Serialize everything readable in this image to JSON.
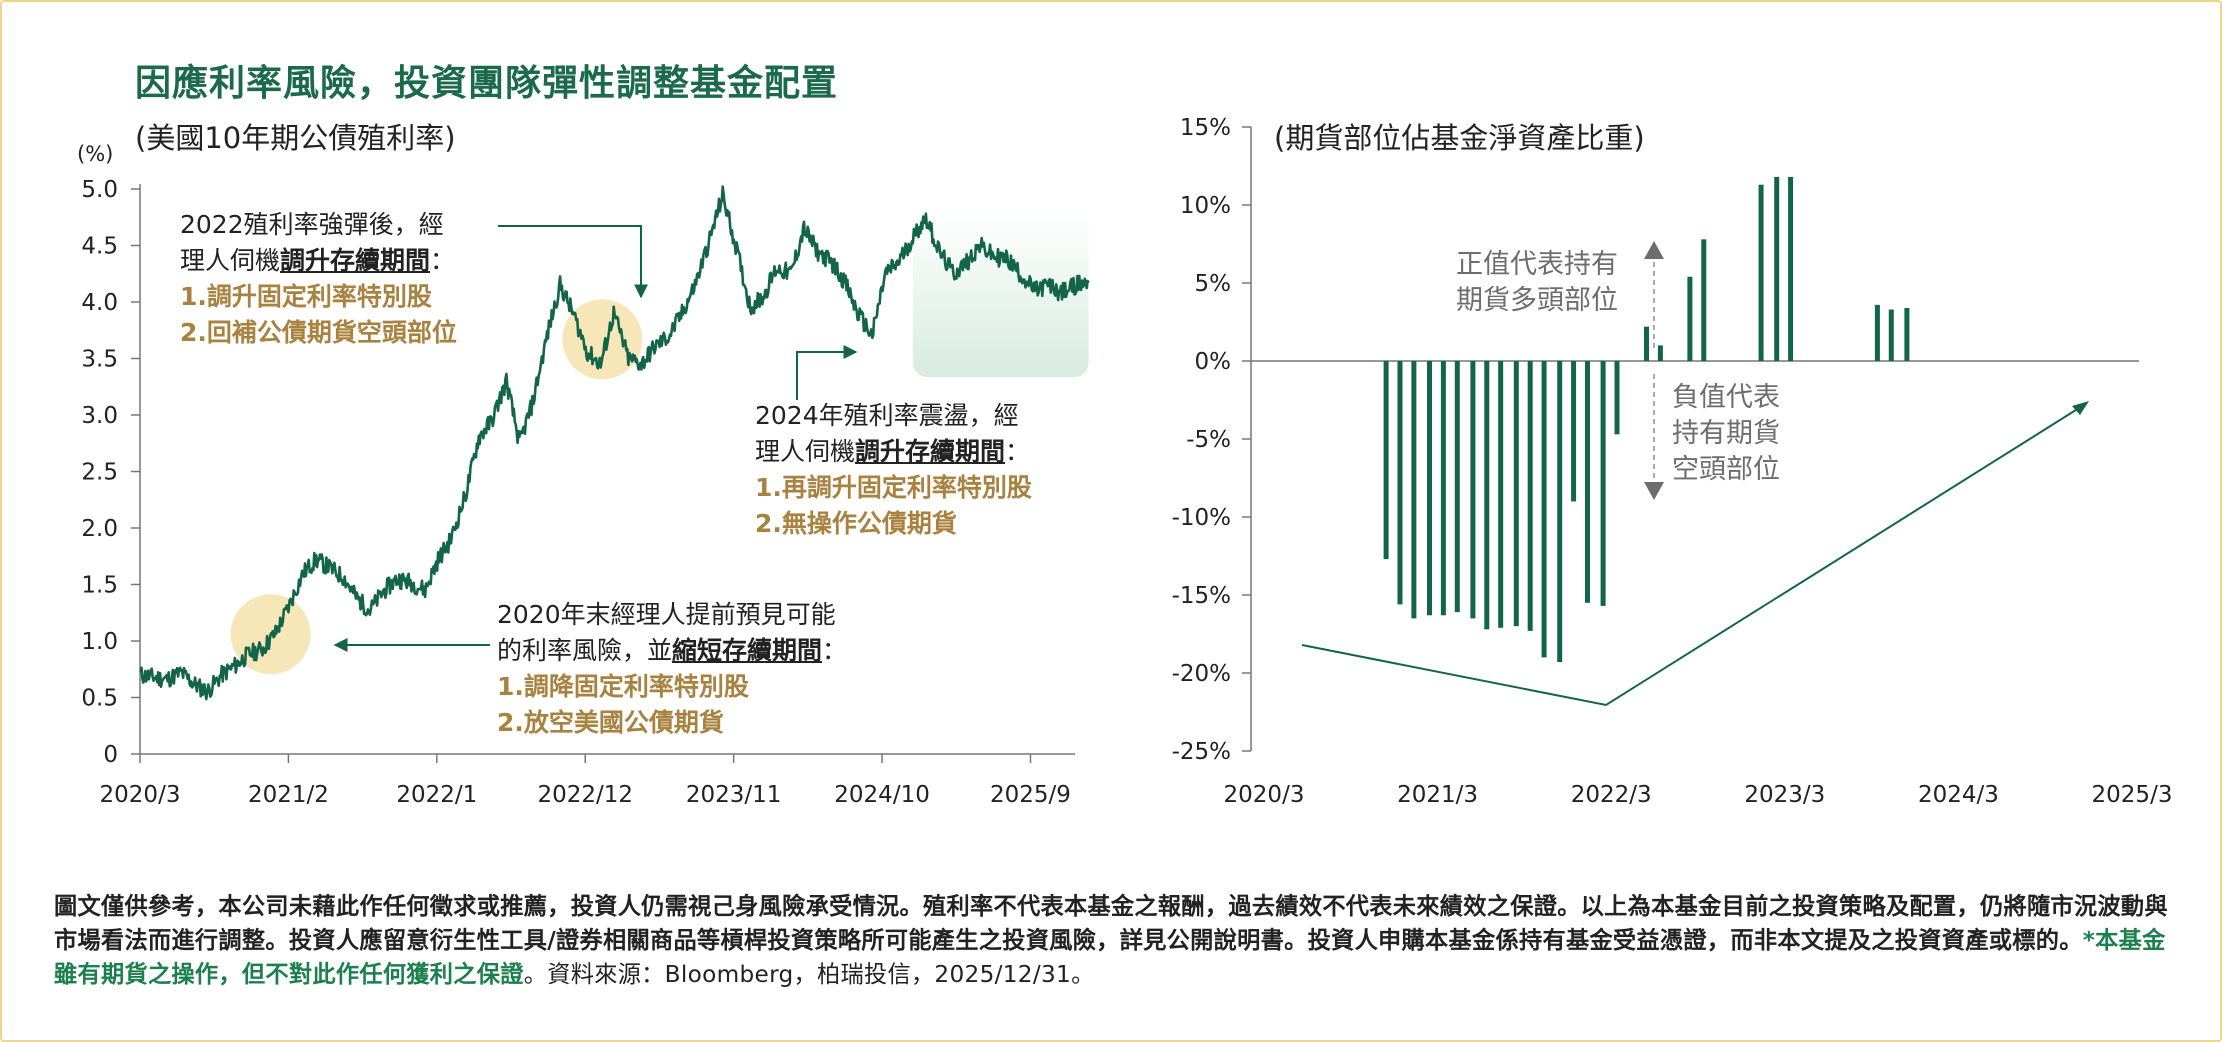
{
  "title": "因應利率風險，投資團隊彈性調整基金配置",
  "left_subtitle": "(美國10年期公債殖利率)",
  "right_subtitle": "(期貨部位佔基金淨資產比重)",
  "unit": "(%)",
  "annotations": {
    "a2022": {
      "line1": "2022殖利率強彈後，經",
      "line2_prefix": "理人伺機",
      "line2_highlight": "調升存續期間",
      "line2_suffix": "：",
      "item1": "1.調升固定利率特別股",
      "item2": "2.回補公債期貨空頭部位"
    },
    "a2024": {
      "line1": "2024年殖利率震盪，經",
      "line2_prefix": "理人伺機",
      "line2_highlight": "調升存續期間",
      "line2_suffix": "：",
      "item1": "1.再調升固定利率特別股",
      "item2": "2.無操作公債期貨"
    },
    "a2020": {
      "line1": "2020年末經理人提前預見可能",
      "line2_prefix": "的利率風險，並",
      "line2_highlight": "縮短存續期間",
      "line2_suffix": "：",
      "item1": "1.調降固定利率特別股",
      "item2": "2.放空美國公債期貨"
    },
    "positive": [
      "正值代表持有",
      "期貨多頭部位"
    ],
    "negative": [
      "負值代表",
      "持有期貨",
      "空頭部位"
    ]
  },
  "footer": {
    "text1": "圖文僅供參考，本公司未藉此作任何徵求或推薦，投資人仍需視己身風險承受情況。殖利率不代表本基金之報酬，過去績效不代表未來績效之保證。以上為本基金目前之投資策略及配置，仍將隨市況波動與市場看法而進行調整。投資人應留意衍生性工具/證券相關商品等槓桿投資策略所可能產生之投資風險，詳見公開說明書。投資人申購本基金係持有基金受益憑證，而非本文提及之投資資產或標的。",
    "green": "*本基金雖有期貨之操作，但不對此作任何獲利之保證",
    "source": "。資料來源：Bloomberg，柏瑞投信，2025/12/31。"
  },
  "colors": {
    "title": "#1b6a4b",
    "series": "#13654a",
    "gold_text": "#a98240",
    "highlight_circle": "#f7e6b8",
    "shade": "#d7ebe0",
    "gray_text": "#6d6d6d",
    "axis": "#777777"
  },
  "chart_data": [
    {
      "type": "line",
      "title": "美國10年期公債殖利率",
      "ylabel": "(%)",
      "ylim": [
        0,
        5.0
      ],
      "yticks": [
        "0",
        "0.5",
        "1.0",
        "1.5",
        "2.0",
        "2.5",
        "3.0",
        "3.5",
        "4.0",
        "4.5",
        "5.0"
      ],
      "xticks": [
        "2020/3",
        "2021/2",
        "2022/1",
        "2022/12",
        "2023/11",
        "2024/10",
        "2025/9"
      ],
      "x_range": [
        "2020/3",
        "2025/12"
      ],
      "series": [
        {
          "name": "US 10Y yield",
          "points": [
            [
              2020.17,
              0.7
            ],
            [
              2020.25,
              0.68
            ],
            [
              2020.33,
              0.66
            ],
            [
              2020.42,
              0.72
            ],
            [
              2020.5,
              0.62
            ],
            [
              2020.58,
              0.55
            ],
            [
              2020.67,
              0.7
            ],
            [
              2020.75,
              0.78
            ],
            [
              2020.83,
              0.88
            ],
            [
              2020.92,
              0.93
            ],
            [
              2021.0,
              1.07
            ],
            [
              2021.08,
              1.3
            ],
            [
              2021.17,
              1.6
            ],
            [
              2021.25,
              1.72
            ],
            [
              2021.33,
              1.65
            ],
            [
              2021.42,
              1.56
            ],
            [
              2021.5,
              1.38
            ],
            [
              2021.58,
              1.27
            ],
            [
              2021.67,
              1.45
            ],
            [
              2021.75,
              1.55
            ],
            [
              2021.83,
              1.52
            ],
            [
              2021.92,
              1.45
            ],
            [
              2022.0,
              1.72
            ],
            [
              2022.08,
              1.9
            ],
            [
              2022.17,
              2.3
            ],
            [
              2022.25,
              2.8
            ],
            [
              2022.33,
              2.95
            ],
            [
              2022.42,
              3.3
            ],
            [
              2022.5,
              2.75
            ],
            [
              2022.58,
              3.1
            ],
            [
              2022.67,
              3.7
            ],
            [
              2022.75,
              4.15
            ],
            [
              2022.83,
              3.9
            ],
            [
              2022.92,
              3.55
            ],
            [
              2023.0,
              3.45
            ],
            [
              2023.08,
              3.9
            ],
            [
              2023.17,
              3.5
            ],
            [
              2023.25,
              3.45
            ],
            [
              2023.33,
              3.6
            ],
            [
              2023.42,
              3.7
            ],
            [
              2023.5,
              3.9
            ],
            [
              2023.58,
              4.15
            ],
            [
              2023.67,
              4.55
            ],
            [
              2023.75,
              4.95
            ],
            [
              2023.83,
              4.5
            ],
            [
              2023.92,
              3.95
            ],
            [
              2024.0,
              4.05
            ],
            [
              2024.08,
              4.3
            ],
            [
              2024.17,
              4.25
            ],
            [
              2024.25,
              4.65
            ],
            [
              2024.33,
              4.45
            ],
            [
              2024.42,
              4.35
            ],
            [
              2024.5,
              4.18
            ],
            [
              2024.58,
              3.9
            ],
            [
              2024.67,
              3.7
            ],
            [
              2024.75,
              4.25
            ],
            [
              2024.83,
              4.35
            ],
            [
              2024.92,
              4.57
            ],
            [
              2025.0,
              4.75
            ],
            [
              2025.08,
              4.45
            ],
            [
              2025.17,
              4.25
            ],
            [
              2025.25,
              4.35
            ],
            [
              2025.33,
              4.5
            ],
            [
              2025.42,
              4.4
            ],
            [
              2025.5,
              4.38
            ],
            [
              2025.58,
              4.25
            ],
            [
              2025.67,
              4.1
            ],
            [
              2025.75,
              4.15
            ],
            [
              2025.83,
              4.08
            ],
            [
              2025.92,
              4.15
            ],
            [
              2026.0,
              4.17
            ]
          ]
        }
      ],
      "shaded_region": {
        "x_start": 2024.92,
        "x_end": 2026.0
      },
      "highlights": [
        {
          "x": 2020.97,
          "y": 1.06
        },
        {
          "x": 2023.01,
          "y": 3.67
        }
      ]
    },
    {
      "type": "bar",
      "title": "期貨部位佔基金淨資產比重",
      "ylim": [
        -25,
        15
      ],
      "yticks": [
        "15%",
        "10%",
        "5%",
        "0%",
        "-5%",
        "-10%",
        "-15%",
        "-20%",
        "-25%"
      ],
      "xticks": [
        "2020/3",
        "2021/3",
        "2022/3",
        "2023/3",
        "2024/3",
        "2025/3"
      ],
      "x_range": [
        "2020/3",
        "2025/3"
      ],
      "series": [
        {
          "name": "期貨部位",
          "points": [
            [
              2020.87,
              -12.7
            ],
            [
              2020.95,
              -15.6
            ],
            [
              2021.03,
              -16.5
            ],
            [
              2021.12,
              -16.3
            ],
            [
              2021.2,
              -16.3
            ],
            [
              2021.28,
              -16.1
            ],
            [
              2021.37,
              -16.5
            ],
            [
              2021.45,
              -17.2
            ],
            [
              2021.53,
              -17.1
            ],
            [
              2021.62,
              -17.0
            ],
            [
              2021.7,
              -17.3
            ],
            [
              2021.78,
              -19.0
            ],
            [
              2021.87,
              -19.3
            ],
            [
              2021.95,
              -9.0
            ],
            [
              2022.03,
              -15.5
            ],
            [
              2022.12,
              -15.7
            ],
            [
              2022.2,
              -4.7
            ],
            [
              2022.37,
              2.2
            ],
            [
              2022.45,
              1.0
            ],
            [
              2022.62,
              5.4
            ],
            [
              2022.7,
              7.8
            ],
            [
              2023.03,
              11.3
            ],
            [
              2023.12,
              11.8
            ],
            [
              2023.2,
              11.8
            ],
            [
              2023.7,
              3.6
            ],
            [
              2023.78,
              3.3
            ],
            [
              2023.87,
              3.4
            ]
          ]
        }
      ]
    }
  ]
}
